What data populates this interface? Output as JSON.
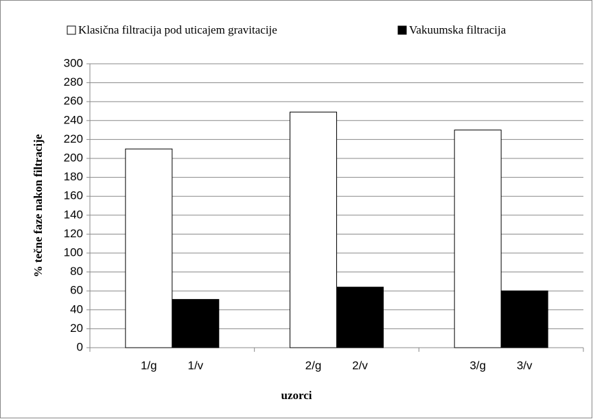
{
  "chart_data": {
    "type": "bar",
    "categories": [
      null,
      null,
      null
    ],
    "series": [
      {
        "name": "Klasična filtracija pod uticajem gravitacije",
        "color": "#ffffff",
        "labels": [
          "1/g",
          "2/g",
          "3/g"
        ],
        "values": [
          210,
          249,
          230
        ]
      },
      {
        "name": "Vakuumska filtracija",
        "color": "#000000",
        "labels": [
          "1/v",
          "2/v",
          "3/v"
        ],
        "values": [
          51,
          64,
          60
        ]
      }
    ],
    "ylabel": "% tečne faze nakon filtracije",
    "xlabel": "uzorci",
    "ylim": [
      0,
      300
    ],
    "yticks": [
      0,
      20,
      40,
      60,
      80,
      100,
      120,
      140,
      160,
      180,
      200,
      220,
      240,
      260,
      280,
      300
    ],
    "grid": true,
    "legend": "top"
  }
}
